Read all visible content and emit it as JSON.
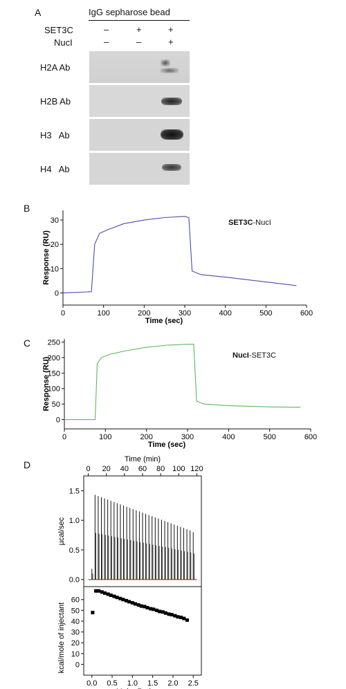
{
  "panel_a": {
    "letter": "A",
    "header": "IgG sepharose bead",
    "row_labels": [
      "SET3C",
      "NucI"
    ],
    "signs": [
      [
        "–",
        "+",
        "+"
      ],
      [
        "–",
        "–",
        "+"
      ]
    ],
    "blots": [
      "H2A Ab",
      "H2B Ab",
      "H3   Ab",
      "H4   Ab"
    ]
  },
  "panel_b": {
    "letter": "B",
    "annotation_bold": "SET3C",
    "annotation_rest": "-NucI"
  },
  "panel_c": {
    "letter": "C",
    "annotation_bold": "NucI",
    "annotation_rest": "-SET3C"
  },
  "panel_d": {
    "letter": "D"
  },
  "chart_data": [
    {
      "type": "line",
      "panel": "B",
      "xlabel": "Time (sec)",
      "ylabel": "Response (RU)",
      "xlim": [
        0,
        600
      ],
      "ylim": [
        -5,
        34
      ],
      "xticks": [
        0,
        100,
        200,
        300,
        400,
        500,
        600
      ],
      "yticks": [
        0,
        10,
        20,
        30
      ],
      "color": "#4a4ab0",
      "x": [
        0,
        70,
        78,
        90,
        110,
        150,
        200,
        250,
        300,
        310,
        318,
        340,
        400,
        450,
        500,
        550,
        575
      ],
      "y": [
        0,
        0.5,
        20,
        24.5,
        26,
        28.5,
        30,
        31,
        31.5,
        31,
        9,
        7.5,
        6.5,
        5.5,
        4.5,
        3.5,
        3
      ]
    },
    {
      "type": "line",
      "panel": "C",
      "xlabel": "Time (sec)",
      "ylabel": "Response (RU)",
      "xlim": [
        0,
        600
      ],
      "ylim": [
        -30,
        260
      ],
      "xticks": [
        0,
        100,
        200,
        300,
        400,
        500,
        600
      ],
      "yticks": [
        0,
        50,
        100,
        150,
        200,
        250
      ],
      "color": "#5cb85c",
      "x": [
        0,
        75,
        80,
        90,
        110,
        150,
        200,
        250,
        300,
        315,
        322,
        340,
        400,
        450,
        500,
        550,
        575
      ],
      "y": [
        0,
        0,
        180,
        200,
        210,
        222,
        233,
        240,
        243,
        243,
        60,
        50,
        45,
        43,
        41,
        40,
        40
      ]
    },
    {
      "type": "line",
      "panel": "D-top",
      "xlabel": "Time (min)",
      "ylabel": "µcal/sec",
      "xlim": [
        -5,
        125
      ],
      "ylim": [
        -0.12,
        1.75
      ],
      "xticks": [
        0,
        20,
        40,
        60,
        80,
        100,
        120
      ],
      "yticks": [
        0.0,
        0.5,
        1.0,
        1.5
      ],
      "color": "#000000",
      "baseline_color": "#e03030",
      "injection_peaks": [
        0.18,
        1.43,
        1.41,
        1.39,
        1.37,
        1.35,
        1.33,
        1.31,
        1.29,
        1.27,
        1.25,
        1.23,
        1.21,
        1.19,
        1.17,
        1.15,
        1.13,
        1.11,
        1.09,
        1.07,
        1.05,
        1.03,
        1.01,
        0.99,
        0.97,
        0.95,
        0.93,
        0.91,
        0.89,
        0.87,
        0.85,
        0.83,
        0.8
      ],
      "injection_start_min": 4,
      "injection_interval_min": 3.5
    },
    {
      "type": "scatter",
      "panel": "D-bottom",
      "xlabel": "Molar Ratio",
      "ylabel": "kcal/mole of injectant",
      "xlim": [
        -0.2,
        2.7
      ],
      "ylim": [
        -10,
        72
      ],
      "xticks": [
        0.0,
        0.5,
        1.0,
        1.5,
        2.0,
        2.5
      ],
      "yticks": [
        0,
        10,
        20,
        30,
        40,
        50,
        60
      ],
      "color": "#000000",
      "x": [
        0.02,
        0.1,
        0.17,
        0.25,
        0.32,
        0.4,
        0.47,
        0.55,
        0.62,
        0.7,
        0.77,
        0.85,
        0.92,
        1.0,
        1.07,
        1.15,
        1.22,
        1.3,
        1.37,
        1.45,
        1.52,
        1.6,
        1.67,
        1.75,
        1.82,
        1.9,
        1.97,
        2.05,
        2.12,
        2.2,
        2.27,
        2.35
      ],
      "y": [
        48,
        68,
        68,
        67,
        66,
        65,
        64,
        63,
        62,
        61,
        60,
        59,
        58,
        57,
        56,
        55,
        54,
        53.5,
        52.5,
        51.5,
        51,
        50,
        49,
        48.5,
        47.5,
        46.5,
        46,
        45,
        44,
        43.5,
        42.5,
        41
      ]
    }
  ]
}
